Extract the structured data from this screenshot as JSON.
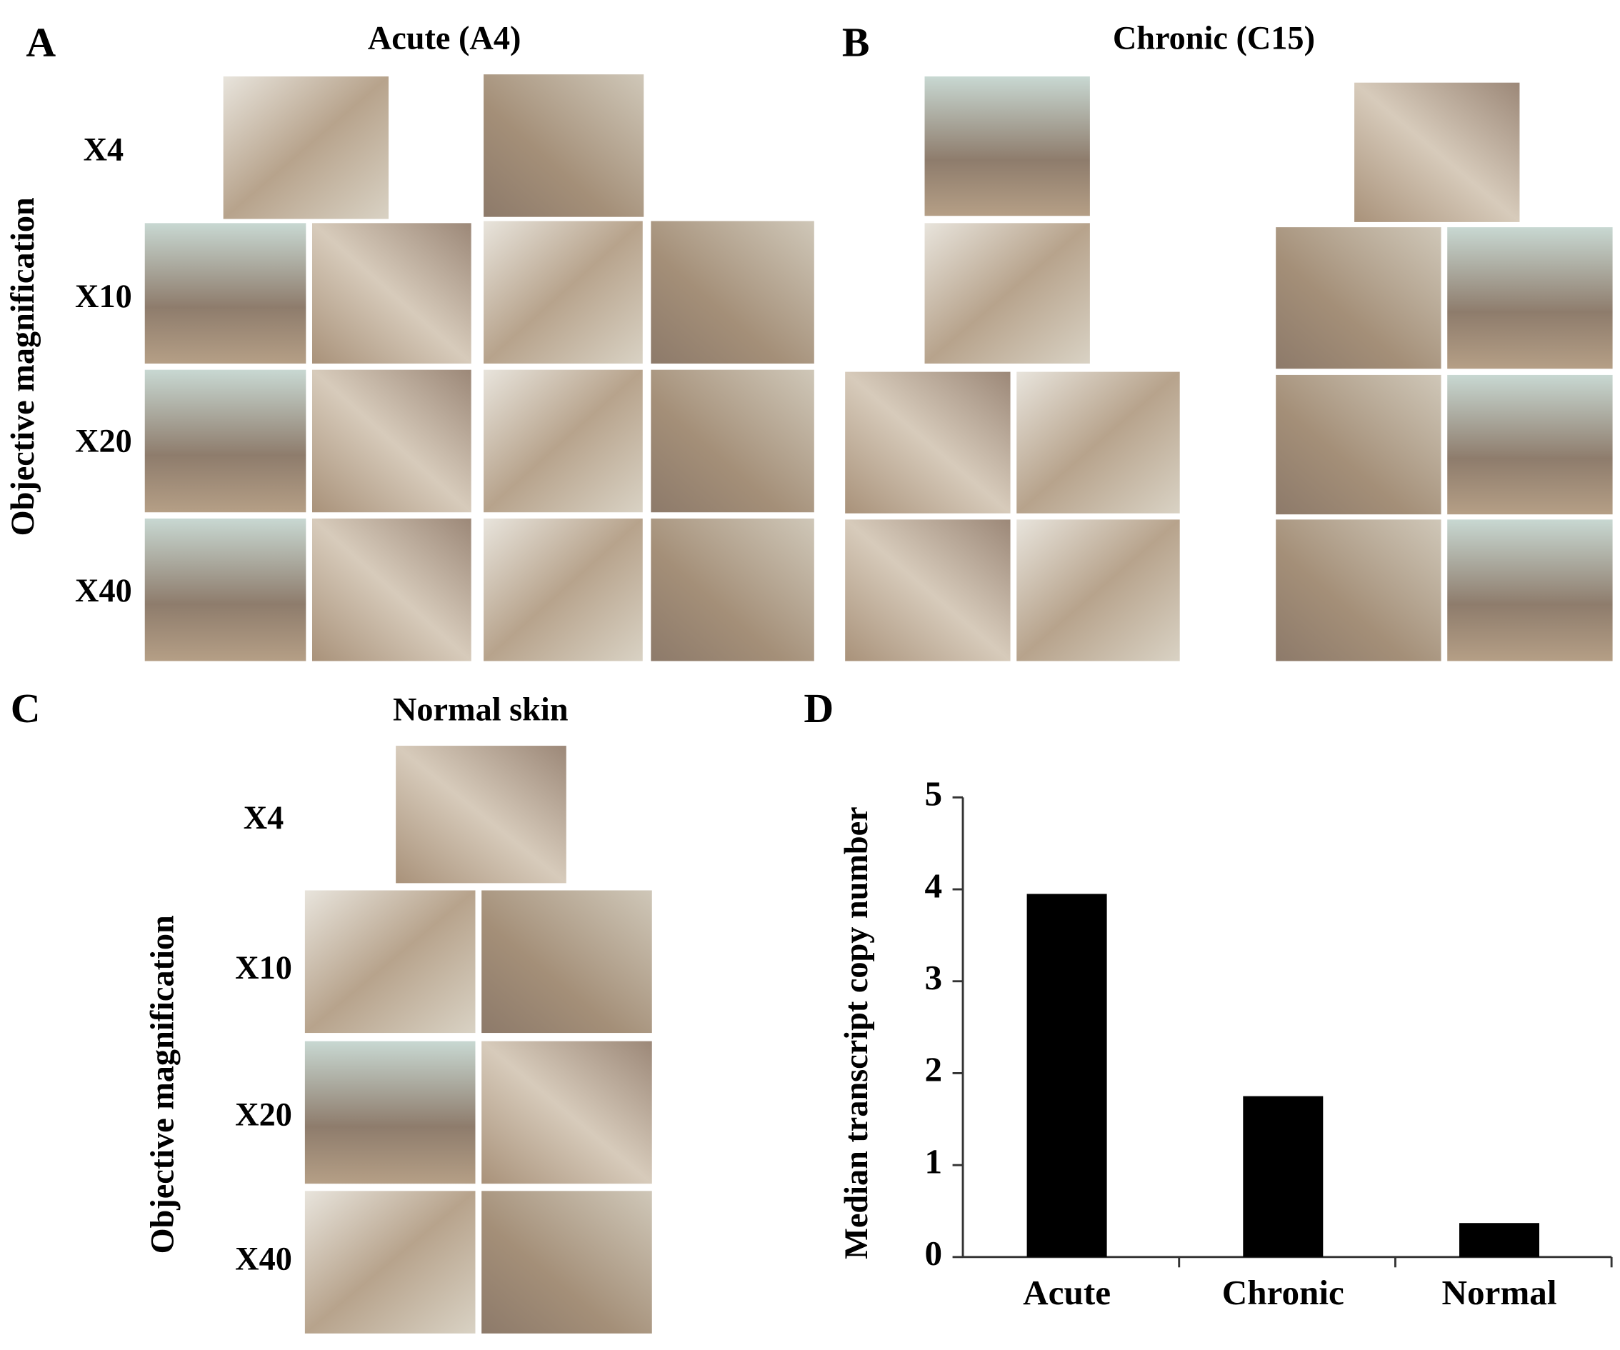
{
  "panels": {
    "A": {
      "label": "A",
      "title": "Acute (A4)",
      "y_label": "Objective magnification",
      "rows": [
        "X4",
        "X10",
        "X20",
        "X40"
      ]
    },
    "B": {
      "label": "B",
      "title": "Chronic (C15)"
    },
    "C": {
      "label": "C",
      "title": "Normal skin",
      "y_label": "Objective magnification",
      "rows": [
        "X4",
        "X10",
        "X20",
        "X40"
      ]
    },
    "D": {
      "label": "D"
    }
  },
  "chart_data": {
    "type": "bar",
    "y_label": "Median transcript copy number",
    "categories": [
      "Acute",
      "Chronic",
      "Normal"
    ],
    "values": [
      3.95,
      1.75,
      0.37
    ],
    "color": "#000000",
    "ylim": [
      0,
      5
    ],
    "yticks": [
      0,
      1,
      2,
      3,
      4,
      5
    ]
  }
}
